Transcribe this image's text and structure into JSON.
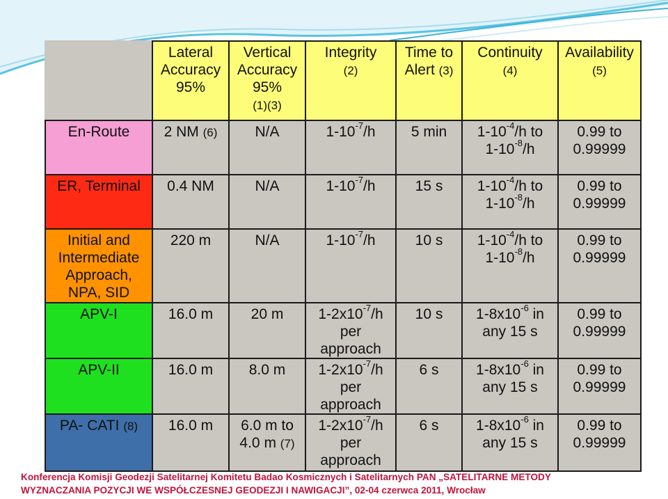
{
  "colors": {
    "header_bg": "#fdfd7a",
    "cell_bg": "#c9c7c0",
    "en_route": "#f59fd4",
    "er_terminal": "#ff2a14",
    "initial_intermediate": "#ff9200",
    "apv_i": "#1ee01e",
    "apv_ii": "#1ee01e",
    "pa_cat_i": "#3e6fa8",
    "footer_text": "#c0143c"
  },
  "headers": [
    {
      "label": "Lateral Accuracy 95%",
      "note": ""
    },
    {
      "label": "Vertical Accuracy 95%",
      "note": "(1)(3)"
    },
    {
      "label": "Integrity",
      "note": "(2)"
    },
    {
      "label": "Time to Alert",
      "note": "(3)"
    },
    {
      "label": "Continuity",
      "note": "(4)"
    },
    {
      "label": "Availability",
      "note": "(5)"
    }
  ],
  "rows": [
    {
      "name": "En-Route",
      "name_note": "",
      "lateral": "2 NM",
      "lateral_note": "(6)",
      "vertical": "N/A",
      "vertical_note": "",
      "integrity_pre": "1-10",
      "integrity_exp": "-7",
      "integrity_post": "/h",
      "integrity_extra": "",
      "time_to_alert": "5 min",
      "continuity_1_pre": "1-10",
      "continuity_1_exp": "-4",
      "continuity_1_post": "/h to",
      "continuity_2_pre": "1-10",
      "continuity_2_exp": "-8",
      "continuity_2_post": "/h",
      "availability_1": "0.99 to",
      "availability_2": "0.99999"
    },
    {
      "name": "ER, Terminal",
      "name_note": "",
      "lateral": "0.4 NM",
      "lateral_note": "",
      "vertical": "N/A",
      "vertical_note": "",
      "integrity_pre": "1-10",
      "integrity_exp": "-7",
      "integrity_post": "/h",
      "integrity_extra": "",
      "time_to_alert": "15 s",
      "continuity_1_pre": "1-10",
      "continuity_1_exp": "-4",
      "continuity_1_post": "/h to",
      "continuity_2_pre": "1-10",
      "continuity_2_exp": "-8",
      "continuity_2_post": "/h",
      "availability_1": "0.99 to",
      "availability_2": "0.99999"
    },
    {
      "name": "Initial and Intermediate Approach, NPA, SID",
      "name_note": "",
      "lateral": "220 m",
      "lateral_note": "",
      "vertical": "N/A",
      "vertical_note": "",
      "integrity_pre": "1-10",
      "integrity_exp": "-7",
      "integrity_post": "/h",
      "integrity_extra": "",
      "time_to_alert": "10 s",
      "continuity_1_pre": "1-10",
      "continuity_1_exp": "-4",
      "continuity_1_post": "/h to",
      "continuity_2_pre": "1-10",
      "continuity_2_exp": "-8",
      "continuity_2_post": "/h",
      "availability_1": "0.99 to",
      "availability_2": "0.99999"
    },
    {
      "name": "APV-I",
      "name_note": "",
      "lateral": "16.0 m",
      "lateral_note": "",
      "vertical": "20 m",
      "vertical_note": "",
      "integrity_pre": "1-2x10",
      "integrity_exp": "-7",
      "integrity_post": "/h",
      "integrity_extra": "per approach",
      "time_to_alert": "10 s",
      "continuity_1_pre": "1-8x10",
      "continuity_1_exp": "-6",
      "continuity_1_post": " in",
      "continuity_2_pre": "any 15 s",
      "continuity_2_exp": "",
      "continuity_2_post": "",
      "availability_1": "0.99 to",
      "availability_2": "0.99999"
    },
    {
      "name": "APV-II",
      "name_note": "",
      "lateral": "16.0 m",
      "lateral_note": "",
      "vertical": "8.0 m",
      "vertical_note": "",
      "integrity_pre": "1-2x10",
      "integrity_exp": "-7",
      "integrity_post": "/h",
      "integrity_extra": "per approach",
      "time_to_alert": "6 s",
      "continuity_1_pre": "1-8x10",
      "continuity_1_exp": "-6",
      "continuity_1_post": " in",
      "continuity_2_pre": "any 15 s",
      "continuity_2_exp": "",
      "continuity_2_post": "",
      "availability_1": "0.99 to",
      "availability_2": "0.99999"
    },
    {
      "name": "PA- CATI",
      "name_note": "(8)",
      "lateral": "16.0 m",
      "lateral_note": "",
      "vertical": "6.0 m to 4.0 m",
      "vertical_note": "(7)",
      "integrity_pre": "1-2x10",
      "integrity_exp": "-7",
      "integrity_post": "/h",
      "integrity_extra": "per approach",
      "time_to_alert": "6 s",
      "continuity_1_pre": "1-8x10",
      "continuity_1_exp": "-6",
      "continuity_1_post": " in",
      "continuity_2_pre": "any 15 s",
      "continuity_2_exp": "",
      "continuity_2_post": "",
      "availability_1": "0.99 to",
      "availability_2": "0.99999"
    }
  ],
  "footer": {
    "line1": "Konferencja Komisji Geodezji Satelitarnej Komitetu Badao Kosmicznych i Satelitarnych PAN „SATELITARNE METODY",
    "line2": "WYZNACZANIA POZYCJI WE WSPÓŁCZESNEJ GEODEZJI I NAWIGACJI”, 02-04 czerwca 2011, Wrocław"
  }
}
